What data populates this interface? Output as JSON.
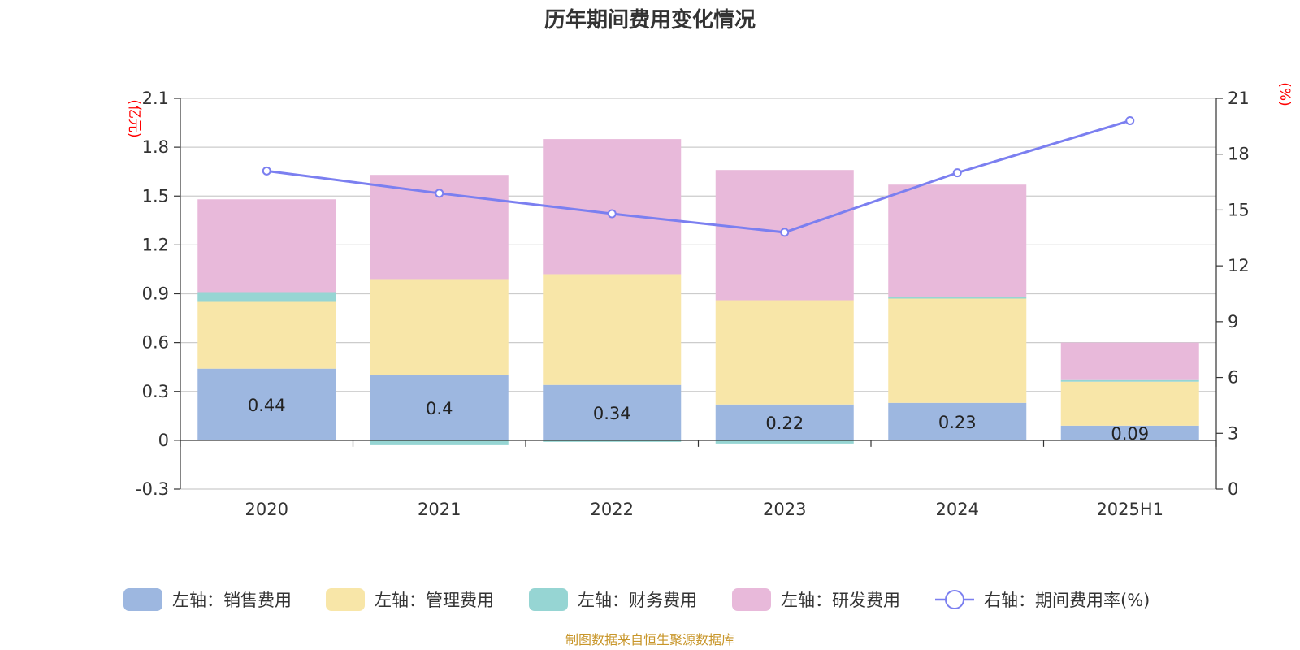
{
  "chart_data": {
    "type": "bar",
    "title": "历年期间费用变化情况",
    "categories": [
      "2020",
      "2021",
      "2022",
      "2023",
      "2024",
      "2025H1"
    ],
    "left_axis": {
      "unit": "(亿元)",
      "ylim": [
        -0.3,
        2.1
      ],
      "ticks": [
        "2.1",
        "1.8",
        "1.5",
        "1.2",
        "0.9",
        "0.6",
        "0.3",
        "0",
        "-0.3"
      ]
    },
    "right_axis": {
      "unit": "(%)",
      "ylim": [
        0,
        21
      ],
      "ticks": [
        "21",
        "18",
        "15",
        "12",
        "9",
        "6",
        "3",
        "0"
      ]
    },
    "series": [
      {
        "name": "左轴：销售费用",
        "kind": "bar",
        "axis": "left",
        "color": "#9db7e0",
        "values": [
          0.44,
          0.4,
          0.34,
          0.22,
          0.23,
          0.09
        ],
        "labels": [
          "0.44",
          "0.4",
          "0.34",
          "0.22",
          "0.23",
          "0.09"
        ]
      },
      {
        "name": "左轴：管理费用",
        "kind": "bar",
        "axis": "left",
        "color": "#f8e6a8",
        "values": [
          0.41,
          0.59,
          0.68,
          0.64,
          0.64,
          0.27
        ]
      },
      {
        "name": "左轴：财务费用",
        "kind": "bar",
        "axis": "left",
        "color": "#96d5d3",
        "values": [
          0.06,
          -0.03,
          -0.01,
          -0.02,
          0.01,
          0.01
        ]
      },
      {
        "name": "左轴：研发费用",
        "kind": "bar",
        "axis": "left",
        "color": "#e8b9da",
        "values": [
          0.57,
          0.64,
          0.83,
          0.8,
          0.69,
          0.23
        ]
      },
      {
        "name": "右轴：期间费用率(%)",
        "kind": "line",
        "axis": "right",
        "color": "#7b7ff0",
        "values": [
          17.1,
          15.9,
          14.8,
          13.8,
          17.0,
          19.8
        ]
      }
    ],
    "grid": true,
    "legend_position": "bottom",
    "source": "制图数据来自恒生聚源数据库"
  }
}
